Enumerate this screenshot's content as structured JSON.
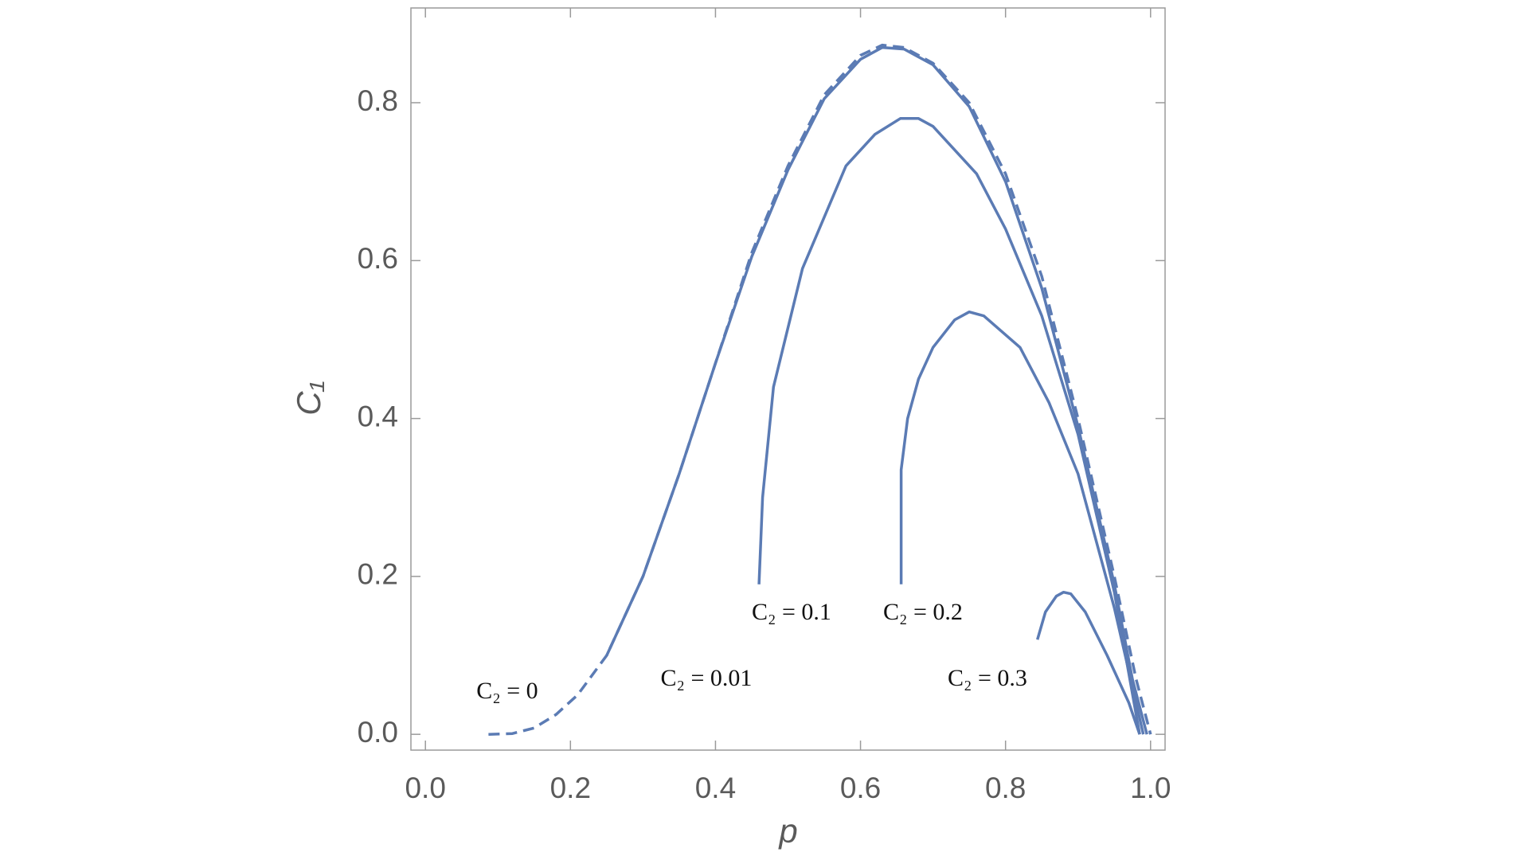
{
  "chart_data": {
    "type": "line",
    "xlabel": "p",
    "ylabel": "C₁",
    "xlim": [
      -0.02,
      1.02
    ],
    "ylim": [
      -0.02,
      0.92
    ],
    "xticks": [
      {
        "value": 0,
        "label": "0.0"
      },
      0.2,
      0.4,
      0.6,
      0.8,
      {
        "value": 1,
        "label": "1.0"
      }
    ],
    "yticks": [
      {
        "value": 0,
        "label": "0.0"
      },
      0.2,
      0.4,
      0.6,
      0.8
    ],
    "series": [
      {
        "name": "C₂ = 0",
        "color": "#5b7bb4",
        "style": "dashed",
        "x": [
          0.087,
          0.12,
          0.15,
          0.18,
          0.21,
          0.25,
          0.3,
          0.35,
          0.4,
          0.45,
          0.5,
          0.55,
          0.6,
          0.63,
          0.66,
          0.7,
          0.75,
          0.8,
          0.85,
          0.9,
          0.95,
          0.98,
          1.0
        ],
        "values": [
          0,
          0.001,
          0.008,
          0.025,
          0.05,
          0.1,
          0.2,
          0.33,
          0.47,
          0.61,
          0.72,
          0.81,
          0.86,
          0.873,
          0.87,
          0.85,
          0.8,
          0.71,
          0.58,
          0.4,
          0.2,
          0.07,
          0
        ]
      },
      {
        "name": "C₂ = 0.01",
        "color": "#5b7bb4",
        "style": "solid",
        "x": [
          0.25,
          0.3,
          0.35,
          0.4,
          0.45,
          0.5,
          0.55,
          0.6,
          0.63,
          0.66,
          0.7,
          0.75,
          0.8,
          0.85,
          0.9,
          0.95,
          0.975,
          0.995
        ],
        "values": [
          0.1,
          0.2,
          0.33,
          0.47,
          0.605,
          0.715,
          0.805,
          0.855,
          0.87,
          0.868,
          0.848,
          0.795,
          0.7,
          0.565,
          0.39,
          0.19,
          0.07,
          0
        ]
      },
      {
        "name": "C₂ = 0.1",
        "color": "#5b7bb4",
        "style": "solid",
        "x": [
          0.46,
          0.465,
          0.48,
          0.52,
          0.58,
          0.62,
          0.655,
          0.68,
          0.7,
          0.76,
          0.8,
          0.85,
          0.9,
          0.95,
          0.985
        ],
        "values": [
          0.19,
          0.3,
          0.44,
          0.59,
          0.72,
          0.76,
          0.78,
          0.78,
          0.77,
          0.71,
          0.64,
          0.53,
          0.38,
          0.18,
          0
        ]
      },
      {
        "name": "C₂ = 0.2",
        "color": "#5b7bb4",
        "style": "solid",
        "x": [
          0.656,
          0.656,
          0.665,
          0.68,
          0.7,
          0.73,
          0.75,
          0.77,
          0.82,
          0.86,
          0.9,
          0.95,
          0.98,
          0.99
        ],
        "values": [
          0.19,
          0.335,
          0.4,
          0.45,
          0.49,
          0.525,
          0.535,
          0.53,
          0.49,
          0.42,
          0.33,
          0.16,
          0.04,
          0
        ]
      },
      {
        "name": "C₂ = 0.3",
        "color": "#5b7bb4",
        "style": "solid",
        "x": [
          0.844,
          0.855,
          0.87,
          0.88,
          0.89,
          0.91,
          0.94,
          0.97,
          0.985
        ],
        "values": [
          0.12,
          0.155,
          0.175,
          0.18,
          0.178,
          0.155,
          0.1,
          0.04,
          0
        ]
      }
    ]
  }
}
